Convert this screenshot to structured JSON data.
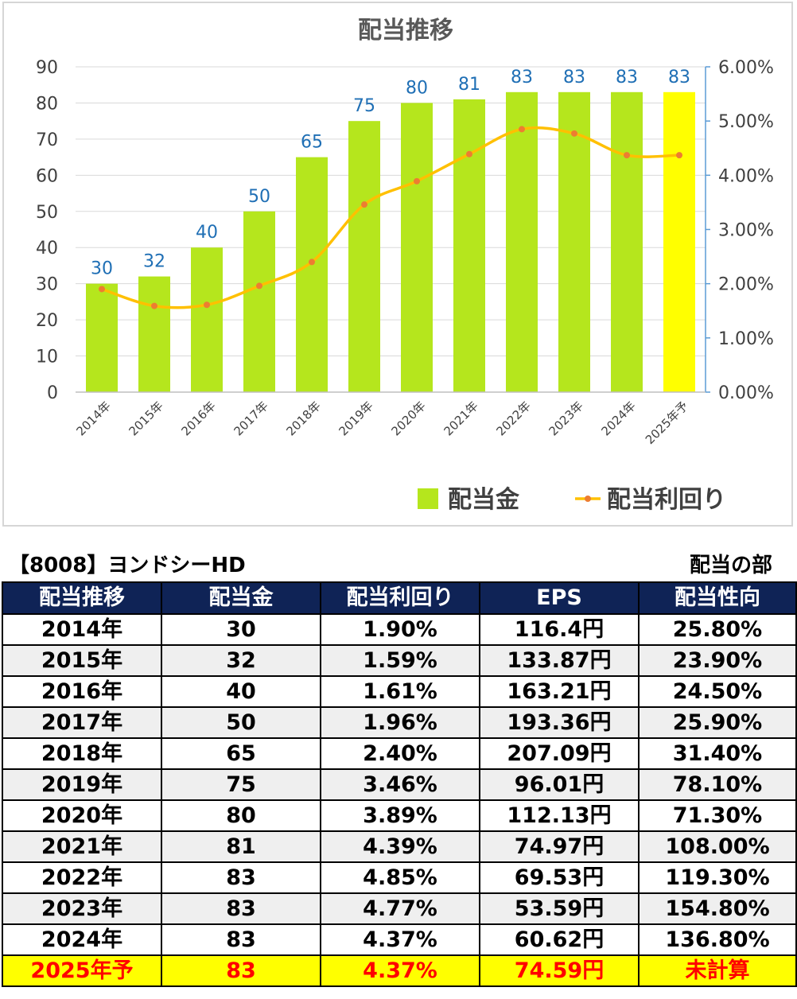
{
  "chart_data": {
    "type": "bar",
    "title": "配当推移",
    "categories": [
      "2014年",
      "2015年",
      "2016年",
      "2017年",
      "2018年",
      "2019年",
      "2020年",
      "2021年",
      "2022年",
      "2023年",
      "2024年",
      "2025年予"
    ],
    "series": [
      {
        "name": "配当金",
        "type": "bar",
        "axis": "left",
        "values": [
          30,
          32,
          40,
          50,
          65,
          75,
          80,
          81,
          83,
          83,
          83,
          83
        ],
        "color": "#b5e61d",
        "highlight_color": "#ffff00",
        "highlight_index": 11
      },
      {
        "name": "配当利回り",
        "type": "line",
        "axis": "right",
        "values": [
          1.9,
          1.59,
          1.61,
          1.96,
          2.4,
          3.46,
          3.89,
          4.39,
          4.85,
          4.77,
          4.37,
          4.37
        ],
        "color": "#ffc000",
        "marker_color": "#ed7d31"
      }
    ],
    "data_labels": [
      "30",
      "32",
      "40",
      "50",
      "65",
      "75",
      "80",
      "81",
      "83",
      "83",
      "83",
      "83"
    ],
    "y_left": {
      "min": 0,
      "max": 90,
      "step": 10,
      "ticks": [
        "0",
        "10",
        "20",
        "30",
        "40",
        "50",
        "60",
        "70",
        "80",
        "90"
      ]
    },
    "y_right": {
      "min": 0,
      "max": 6,
      "step": 1,
      "ticks": [
        "0.00%",
        "1.00%",
        "2.00%",
        "3.00%",
        "4.00%",
        "5.00%",
        "6.00%"
      ]
    },
    "grid": true,
    "legend": "bottom-right"
  },
  "table": {
    "title": "【8008】ヨンドシーHD",
    "section": "配当の部",
    "headers": [
      "配当推移",
      "配当金",
      "配当利回り",
      "EPS",
      "配当性向"
    ],
    "rows": [
      [
        "2014年",
        "30",
        "1.90%",
        "116.4円",
        "25.80%"
      ],
      [
        "2015年",
        "32",
        "1.59%",
        "133.87円",
        "23.90%"
      ],
      [
        "2016年",
        "40",
        "1.61%",
        "163.21円",
        "24.50%"
      ],
      [
        "2017年",
        "50",
        "1.96%",
        "193.36円",
        "25.90%"
      ],
      [
        "2018年",
        "65",
        "2.40%",
        "207.09円",
        "31.40%"
      ],
      [
        "2019年",
        "75",
        "3.46%",
        "96.01円",
        "78.10%"
      ],
      [
        "2020年",
        "80",
        "3.89%",
        "112.13円",
        "71.30%"
      ],
      [
        "2021年",
        "81",
        "4.39%",
        "74.97円",
        "108.00%"
      ],
      [
        "2022年",
        "83",
        "4.85%",
        "69.53円",
        "119.30%"
      ],
      [
        "2023年",
        "83",
        "4.77%",
        "53.59円",
        "154.80%"
      ],
      [
        "2024年",
        "83",
        "4.37%",
        "60.62円",
        "136.80%"
      ],
      [
        "2025年予",
        "83",
        "4.37%",
        "74.59円",
        "未計算"
      ]
    ],
    "forecast_row_index": 11,
    "colors": {
      "header_bg": "#0f2356",
      "alt_row_bg": "#efefef",
      "forecast_bg": "#ffff00",
      "forecast_text": "#ff0000"
    }
  }
}
